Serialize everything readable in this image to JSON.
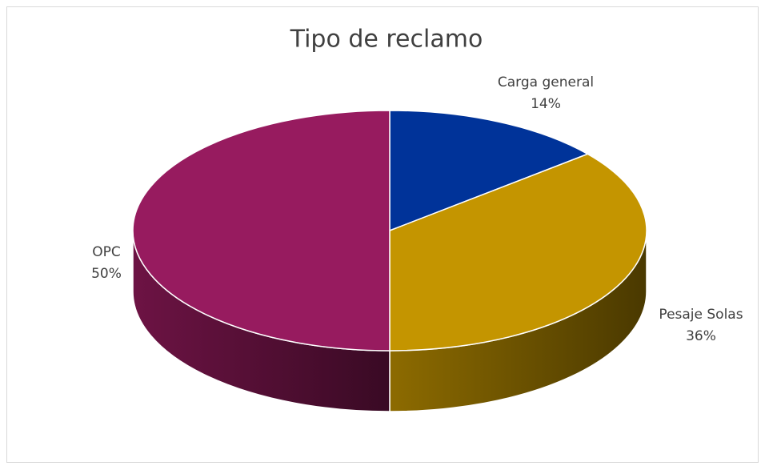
{
  "chart_data": {
    "type": "pie",
    "title": "Tipo de reclamo",
    "categories": [
      "Carga general",
      "Pesaje Solas",
      "OPC"
    ],
    "values": [
      14,
      36,
      50
    ],
    "value_labels": [
      "14%",
      "36%",
      "50%"
    ],
    "colors": [
      "#003399",
      "#c49500",
      "#971b5f"
    ]
  }
}
